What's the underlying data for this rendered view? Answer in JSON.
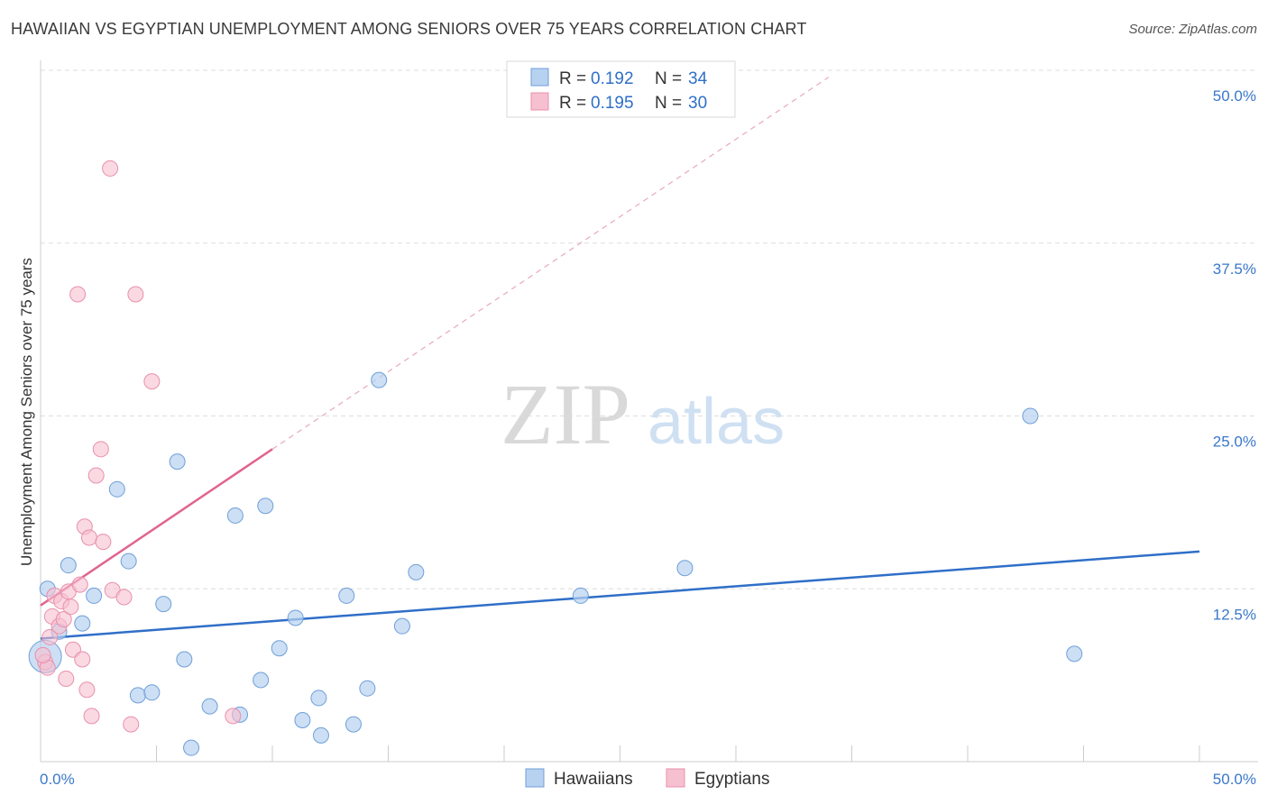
{
  "title": "HAWAIIAN VS EGYPTIAN UNEMPLOYMENT AMONG SENIORS OVER 75 YEARS CORRELATION CHART",
  "source": "Source: ZipAtlas.com",
  "watermark": {
    "zip": "ZIP",
    "atlas": "atlas"
  },
  "colors": {
    "blue_fill": "#b7d1f0",
    "blue_stroke": "#6f9fd8",
    "blue_line": "#2f6fc8",
    "pink_fill": "#f6c0d0",
    "pink_stroke": "#e890ac",
    "pink_line": "#e0648e",
    "grid": "#dddddd",
    "tick_text": "#3a78c9"
  },
  "legend": {
    "items": [
      {
        "r_label": "R = ",
        "r_value": "0.192",
        "n_label": "N = ",
        "n_value": "34"
      },
      {
        "r_label": "R = ",
        "r_value": "0.195",
        "n_label": "N = ",
        "n_value": "30"
      }
    ]
  },
  "chart_data": {
    "type": "scatter",
    "title": "HAWAIIAN VS EGYPTIAN UNEMPLOYMENT AMONG SENIORS OVER 75 YEARS CORRELATION CHART",
    "xlabel": "",
    "ylabel": "Unemployment Among Seniors over 75 years",
    "xlim": [
      0,
      50
    ],
    "ylim": [
      0,
      50
    ],
    "x_tick_labels": [
      "0.0%",
      "50.0%"
    ],
    "y_ticks": [
      12.5,
      25.0,
      37.5,
      50.0
    ],
    "y_tick_labels": [
      "12.5%",
      "25.0%",
      "37.5%",
      "50.0%"
    ],
    "grid": true,
    "series": [
      {
        "name": "Hawaiians",
        "r": 0.192,
        "n": 34,
        "trend": {
          "x0": 0,
          "y0": 8.9,
          "x1": 50,
          "y1": 15.2
        },
        "points": [
          [
            0.2,
            7.6
          ],
          [
            0.8,
            9.4
          ],
          [
            1.2,
            14.2
          ],
          [
            1.8,
            10.0
          ],
          [
            2.3,
            12.0
          ],
          [
            3.3,
            19.7
          ],
          [
            3.8,
            14.5
          ],
          [
            4.2,
            4.8
          ],
          [
            4.8,
            5.0
          ],
          [
            5.3,
            11.4
          ],
          [
            5.9,
            21.7
          ],
          [
            6.2,
            7.4
          ],
          [
            6.5,
            1.0
          ],
          [
            7.3,
            4.0
          ],
          [
            8.4,
            17.8
          ],
          [
            8.6,
            3.4
          ],
          [
            9.5,
            5.9
          ],
          [
            9.7,
            18.5
          ],
          [
            10.3,
            8.2
          ],
          [
            11.0,
            10.4
          ],
          [
            11.3,
            3.0
          ],
          [
            12.0,
            4.6
          ],
          [
            12.1,
            1.9
          ],
          [
            13.2,
            12.0
          ],
          [
            13.5,
            2.7
          ],
          [
            14.1,
            5.3
          ],
          [
            14.6,
            27.6
          ],
          [
            15.6,
            9.8
          ],
          [
            16.2,
            13.7
          ],
          [
            23.3,
            12.0
          ],
          [
            27.8,
            14.0
          ],
          [
            42.7,
            25.0
          ],
          [
            44.6,
            7.8
          ],
          [
            0.3,
            12.5
          ]
        ]
      },
      {
        "name": "Egyptians",
        "r": 0.195,
        "n": 30,
        "trend": {
          "x0": 0,
          "y0": 11.3,
          "x1": 10.0,
          "y1": 22.6
        },
        "trend_extension": {
          "x0": 10.0,
          "y0": 22.6,
          "x1": 34.0,
          "y1": 49.5
        },
        "points": [
          [
            0.2,
            7.2
          ],
          [
            0.3,
            6.8
          ],
          [
            0.4,
            9.0
          ],
          [
            0.5,
            10.5
          ],
          [
            0.6,
            12.0
          ],
          [
            0.8,
            9.8
          ],
          [
            0.9,
            11.6
          ],
          [
            1.0,
            10.3
          ],
          [
            1.1,
            6.0
          ],
          [
            1.2,
            12.3
          ],
          [
            1.3,
            11.2
          ],
          [
            1.4,
            8.1
          ],
          [
            1.6,
            33.8
          ],
          [
            1.7,
            12.8
          ],
          [
            1.8,
            7.4
          ],
          [
            1.9,
            17.0
          ],
          [
            2.0,
            5.2
          ],
          [
            2.1,
            16.2
          ],
          [
            2.2,
            3.3
          ],
          [
            2.4,
            20.7
          ],
          [
            2.6,
            22.6
          ],
          [
            2.7,
            15.9
          ],
          [
            3.0,
            42.9
          ],
          [
            3.1,
            12.4
          ],
          [
            3.6,
            11.9
          ],
          [
            3.9,
            2.7
          ],
          [
            4.1,
            33.8
          ],
          [
            4.8,
            27.5
          ],
          [
            8.3,
            3.3
          ],
          [
            0.1,
            7.7
          ]
        ]
      }
    ]
  },
  "bottom_legend": [
    "Hawaiians",
    "Egyptians"
  ]
}
